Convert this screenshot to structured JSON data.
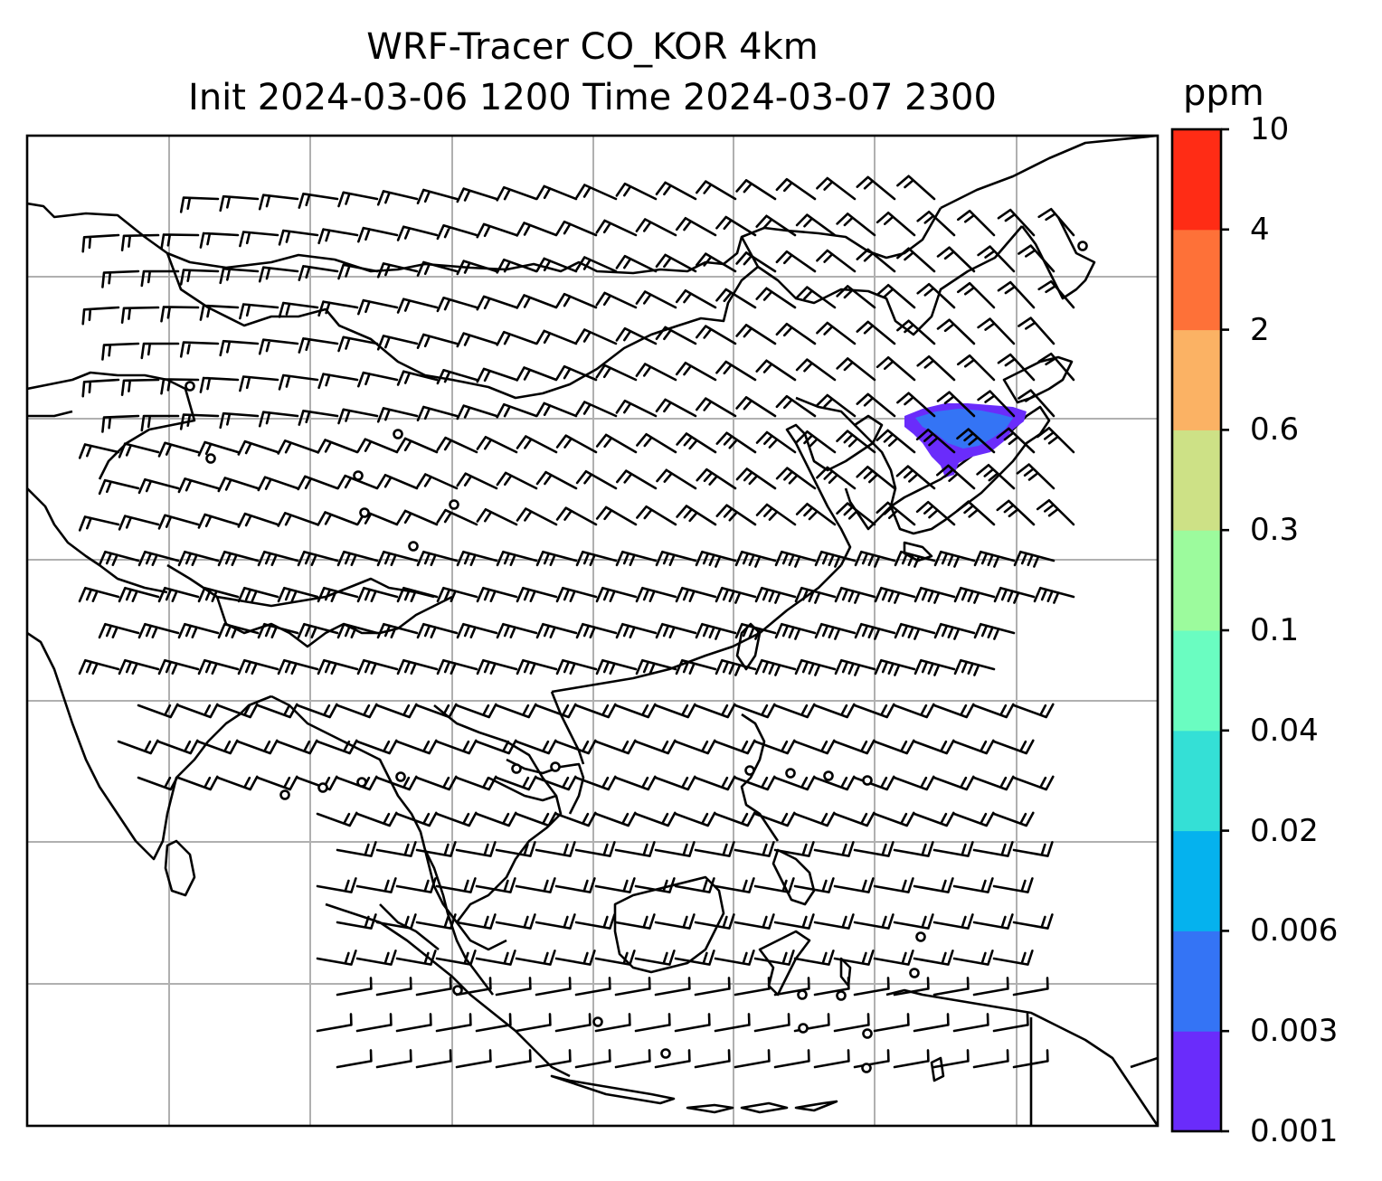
{
  "title": {
    "line1": "WRF-Tracer CO_KOR 4km",
    "line2": "Init 2024-03-06 1200 Time 2024-03-07 2300"
  },
  "colorbar": {
    "unit": "ppm",
    "levels": [
      "0.001",
      "0.003",
      "0.006",
      "0.02",
      "0.04",
      "0.1",
      "0.3",
      "0.6",
      "2",
      "4",
      "10"
    ],
    "colors": [
      "#6a2cfb",
      "#3474f5",
      "#05b2ee",
      "#34e0d6",
      "#6afdc1",
      "#9cfb9d",
      "#cde186",
      "#fbb264",
      "#fe7138",
      "#ff2c15"
    ]
  },
  "tracer_plume": {
    "max_category": "0.003-0.006",
    "colors": [
      "#6a2cfb",
      "#3474f5"
    ],
    "region": "off east coast of Korea / Sea of Japan"
  },
  "map": {
    "projection": "Lambert-like, East and Southeast Asia",
    "gridlines": true,
    "layers": [
      "coastlines",
      "country borders",
      "wind barbs",
      "CO tracer shading"
    ]
  }
}
